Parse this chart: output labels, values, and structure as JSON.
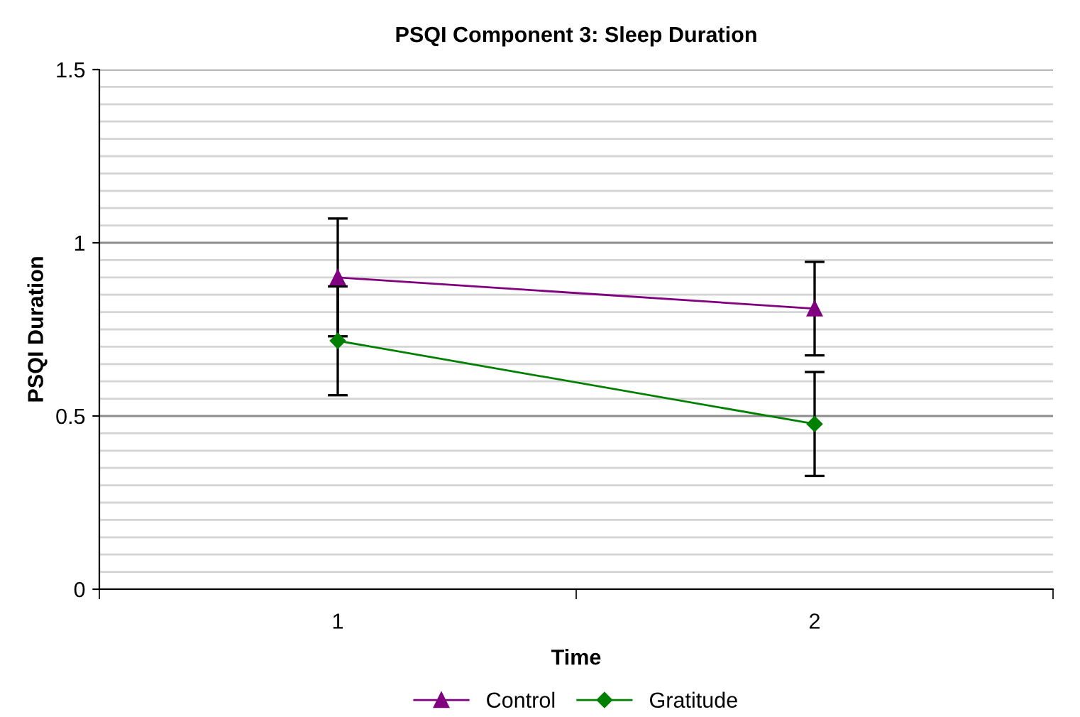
{
  "chart_data": {
    "type": "line",
    "title": "PSQI Component 3: Sleep Duration",
    "xlabel": "Time",
    "ylabel": "PSQI Duration",
    "categories": [
      "1",
      "2"
    ],
    "series": [
      {
        "name": "Control",
        "color": "#800080",
        "marker": "triangle",
        "values": [
          0.9,
          0.81
        ],
        "errors": [
          0.17,
          0.135
        ]
      },
      {
        "name": "Gratitude",
        "color": "#008000",
        "marker": "diamond",
        "values": [
          0.717,
          0.477
        ],
        "errors": [
          0.157,
          0.15
        ]
      }
    ],
    "ylim": [
      0,
      1.5
    ],
    "yticks": [
      0,
      0.5,
      1,
      1.5
    ],
    "grid": "y",
    "legend": "bottom",
    "line_style": "solid"
  }
}
